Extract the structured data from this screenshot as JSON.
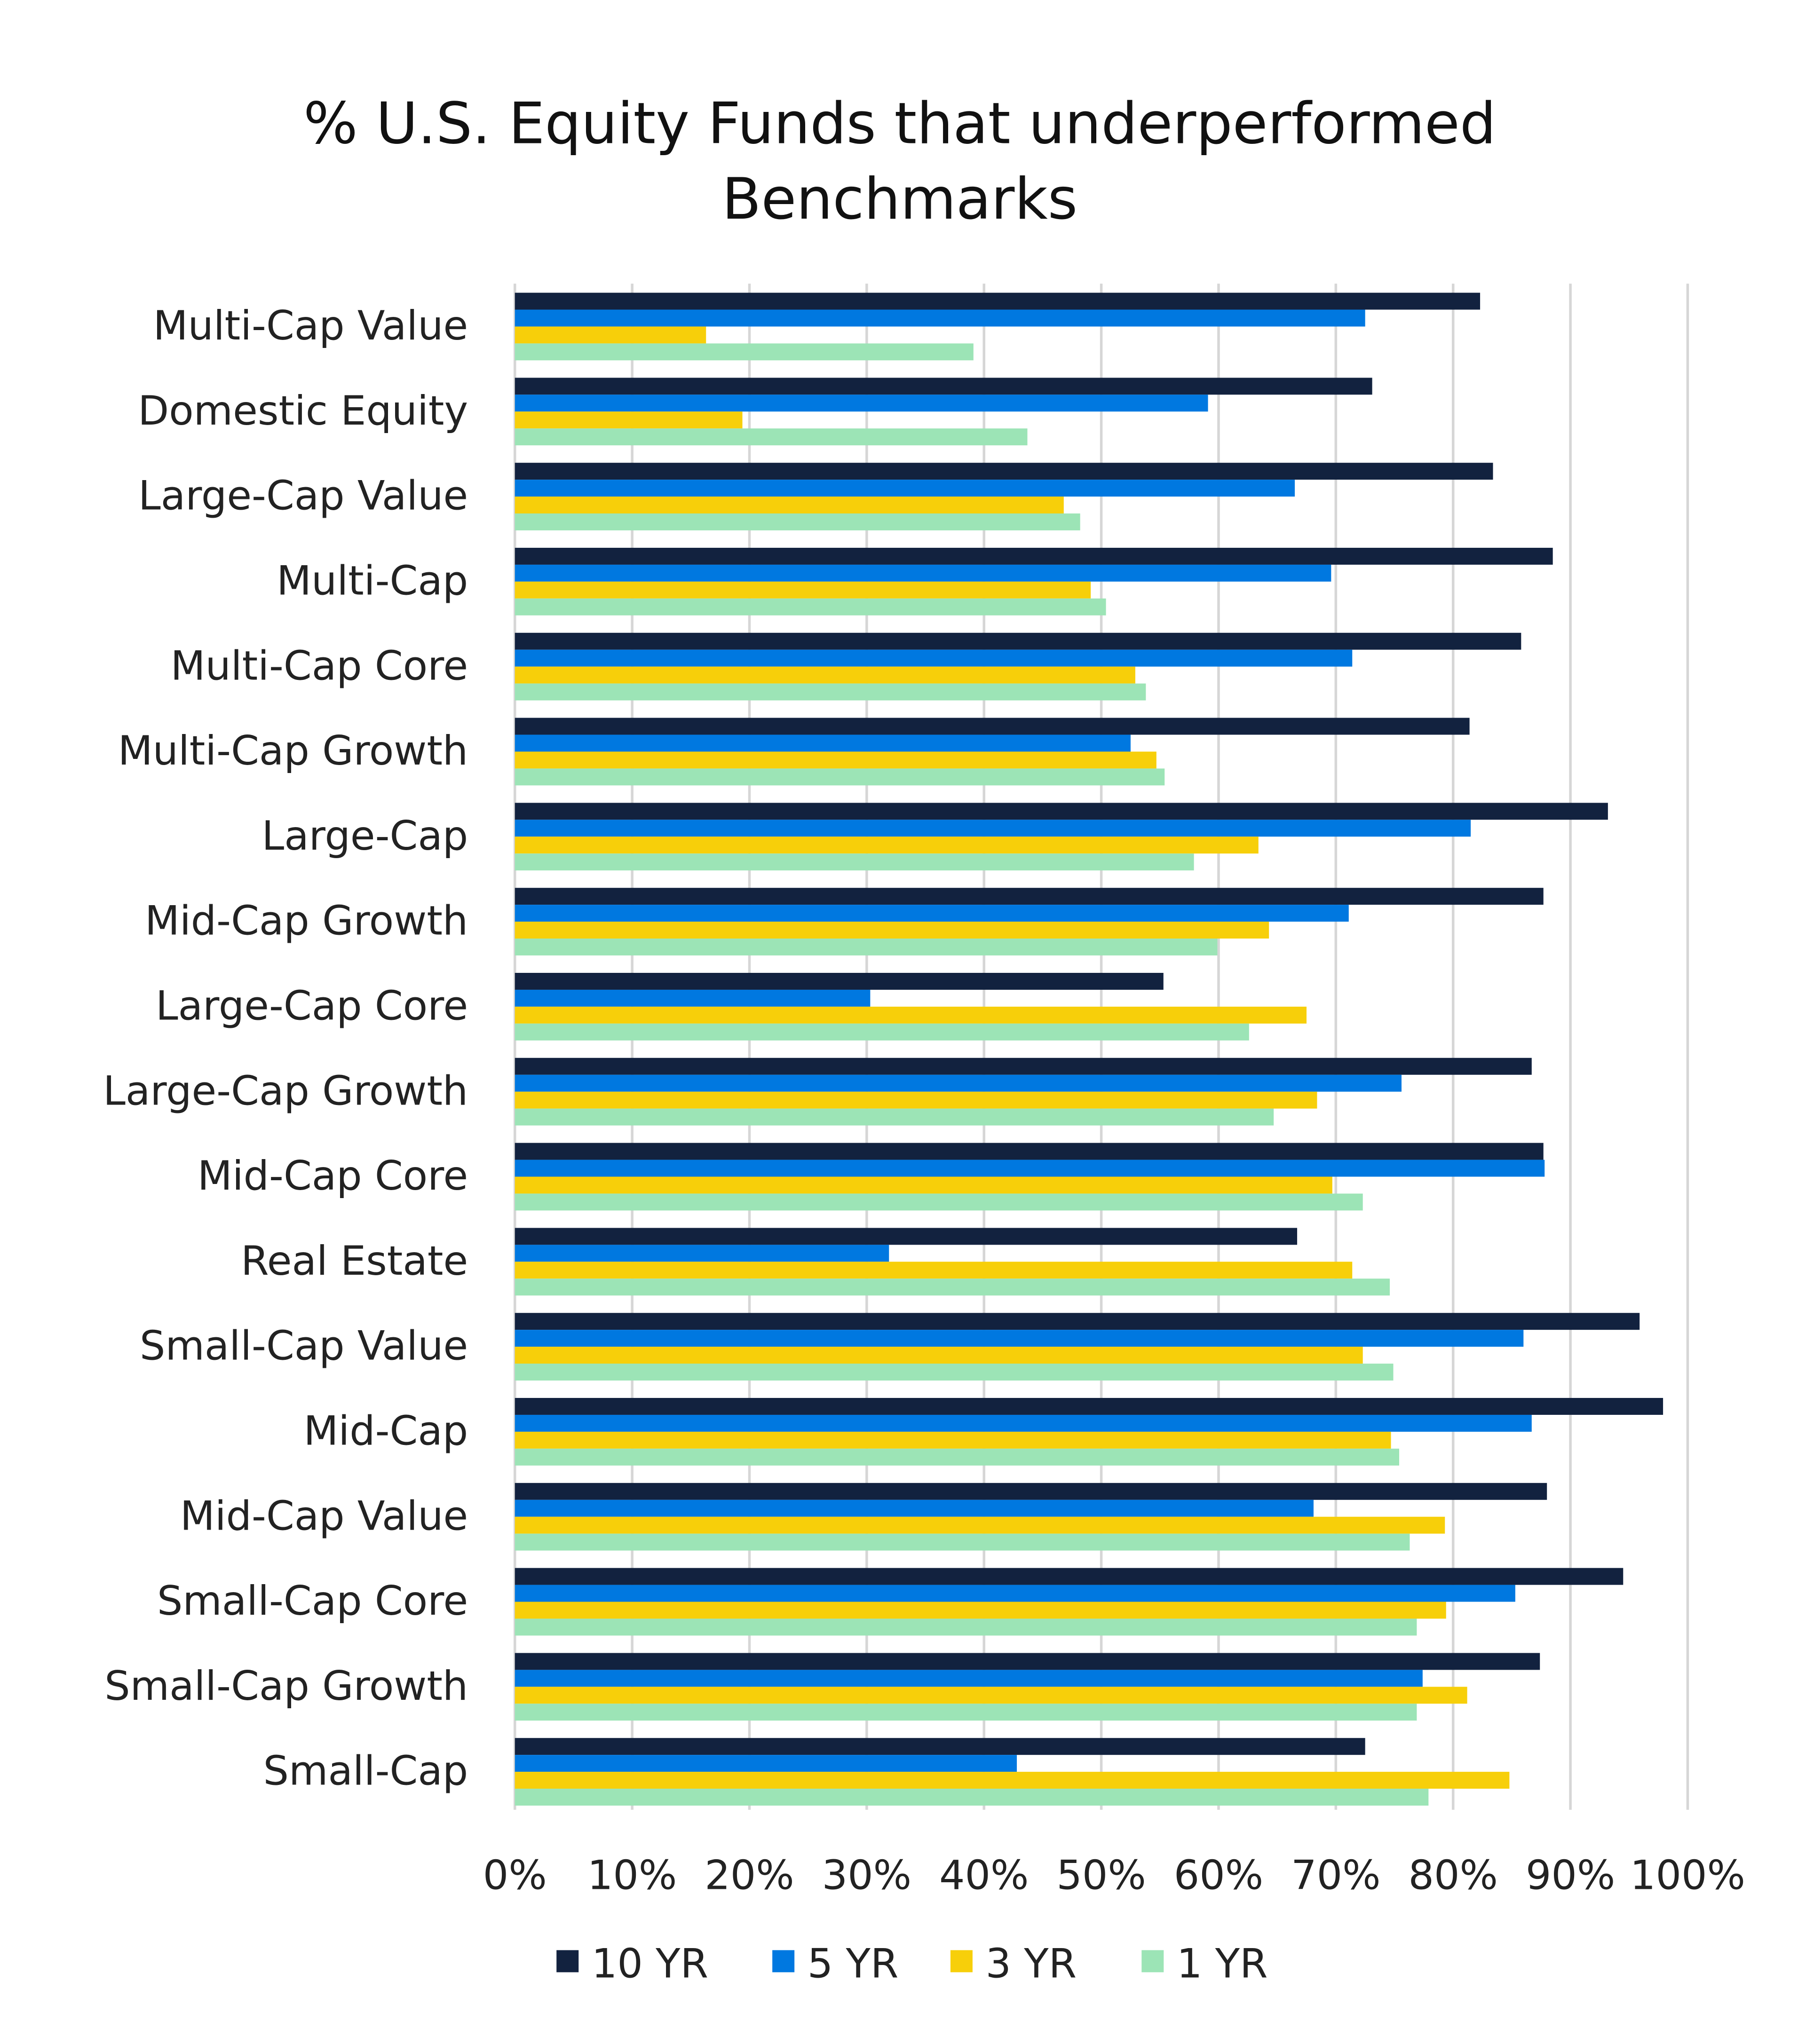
{
  "chart_data": {
    "type": "bar",
    "orientation": "horizontal",
    "title": "% U.S. Equity Funds that underperformed Benchmarks",
    "title_lines": [
      "% U.S. Equity Funds that underperformed",
      "Benchmarks"
    ],
    "xlabel": "",
    "ylabel": "",
    "xlim": [
      0,
      100
    ],
    "x_ticks": [
      "0%",
      "10%",
      "20%",
      "30%",
      "40%",
      "50%",
      "60%",
      "70%",
      "80%",
      "90%",
      "100%"
    ],
    "grid": "vertical",
    "legend_position": "bottom",
    "categories": [
      "Multi-Cap Value",
      "Domestic Equity",
      "Large-Cap Value",
      "Multi-Cap",
      "Multi-Cap Core",
      "Multi-Cap Growth",
      "Large-Cap",
      "Mid-Cap Growth",
      "Large-Cap Core",
      "Large-Cap Growth",
      "Mid-Cap Core",
      "Real Estate",
      "Small-Cap Value",
      "Mid-Cap",
      "Mid-Cap Value",
      "Small-Cap Core",
      "Small-Cap Growth",
      "Small-Cap"
    ],
    "series": [
      {
        "name": "10 YR",
        "color": "#12223f",
        "values": [
          82.3,
          73.1,
          83.4,
          88.5,
          85.8,
          81.4,
          93.2,
          87.7,
          55.3,
          86.7,
          87.7,
          66.7,
          95.9,
          97.9,
          88.0,
          94.5,
          87.4,
          72.5
        ]
      },
      {
        "name": "5 YR",
        "color": "#0078e0",
        "values": [
          72.5,
          59.1,
          66.5,
          69.6,
          71.4,
          52.5,
          81.5,
          71.1,
          30.3,
          75.6,
          87.8,
          31.9,
          86.0,
          86.7,
          68.1,
          85.3,
          77.4,
          42.8
        ]
      },
      {
        "name": "3 YR",
        "color": "#f7cf0a",
        "values": [
          16.3,
          19.4,
          46.8,
          49.1,
          52.9,
          54.7,
          63.4,
          64.3,
          67.5,
          68.4,
          69.7,
          71.4,
          72.3,
          74.7,
          79.3,
          79.4,
          81.2,
          84.8
        ]
      },
      {
        "name": "1 YR",
        "color": "#9ce4b6",
        "values": [
          39.1,
          43.7,
          48.2,
          50.4,
          53.8,
          55.4,
          57.9,
          59.9,
          62.6,
          64.7,
          72.3,
          74.6,
          74.9,
          75.4,
          76.3,
          76.9,
          76.9,
          77.9
        ]
      }
    ]
  }
}
